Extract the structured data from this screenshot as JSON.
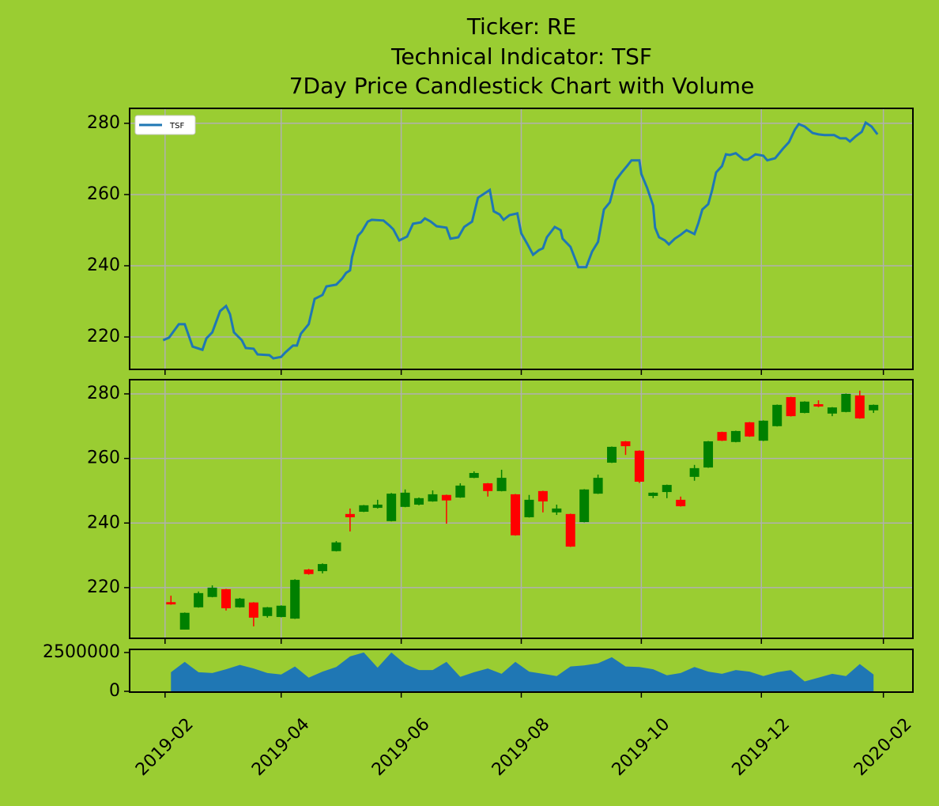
{
  "title": [
    "Ticker: RE",
    "Technical Indicator: TSF",
    "7Day Price Candlestick Chart with Volume"
  ],
  "chart_data": [
    {
      "type": "line",
      "grid": true,
      "legend": "upper left",
      "ylim": [
        210.9,
        284.2
      ],
      "yticks": [
        220,
        240,
        260,
        280
      ],
      "series": [
        {
          "name": "TSF",
          "color": "#1f77b4",
          "x": [
            "2019-01-31",
            "2019-02-03",
            "2019-02-08",
            "2019-02-11",
            "2019-02-15",
            "2019-02-20",
            "2019-02-22",
            "2019-02-25",
            "2019-03-01",
            "2019-03-04",
            "2019-03-06",
            "2019-03-08",
            "2019-03-12",
            "2019-03-14",
            "2019-03-18",
            "2019-03-20",
            "2019-03-26",
            "2019-03-28",
            "2019-04-01",
            "2019-04-03",
            "2019-04-07",
            "2019-04-09",
            "2019-04-11",
            "2019-04-15",
            "2019-04-18",
            "2019-04-22",
            "2019-04-24",
            "2019-04-29",
            "2019-05-02",
            "2019-05-04",
            "2019-05-06",
            "2019-05-07",
            "2019-05-10",
            "2019-05-12",
            "2019-05-15",
            "2019-05-17",
            "2019-05-23",
            "2019-05-26",
            "2019-05-28",
            "2019-05-31",
            "2019-06-04",
            "2019-06-07",
            "2019-06-11",
            "2019-06-13",
            "2019-06-16",
            "2019-06-19",
            "2019-06-24",
            "2019-06-26",
            "2019-06-30",
            "2019-07-03",
            "2019-07-07",
            "2019-07-10",
            "2019-07-16",
            "2019-07-18",
            "2019-07-21",
            "2019-07-23",
            "2019-07-26",
            "2019-07-30",
            "2019-08-01",
            "2019-08-04",
            "2019-08-07",
            "2019-08-10",
            "2019-08-12",
            "2019-08-14",
            "2019-08-18",
            "2019-08-21",
            "2019-08-22",
            "2019-08-26",
            "2019-08-30",
            "2019-09-03",
            "2019-09-06",
            "2019-09-09",
            "2019-09-12",
            "2019-09-15",
            "2019-09-18",
            "2019-09-21",
            "2019-09-24",
            "2019-09-26",
            "2019-09-30",
            "2019-10-01",
            "2019-10-04",
            "2019-10-07",
            "2019-10-08",
            "2019-10-10",
            "2019-10-13",
            "2019-10-15",
            "2019-10-18",
            "2019-10-21",
            "2019-10-24",
            "2019-10-28",
            "2019-10-30",
            "2019-11-01",
            "2019-11-04",
            "2019-11-06",
            "2019-11-08",
            "2019-11-11",
            "2019-11-13",
            "2019-11-15",
            "2019-11-18",
            "2019-11-22",
            "2019-11-24",
            "2019-11-28",
            "2019-12-02",
            "2019-12-04",
            "2019-12-08",
            "2019-12-12",
            "2019-12-15",
            "2019-12-18",
            "2019-12-20",
            "2019-12-23",
            "2019-12-27",
            "2019-12-30",
            "2020-01-02",
            "2020-01-07",
            "2020-01-10",
            "2020-01-13",
            "2020-01-15",
            "2020-01-18",
            "2020-01-21",
            "2020-01-23",
            "2020-01-26",
            "2020-01-29"
          ],
          "values": [
            219.1,
            219.8,
            223.6,
            223.6,
            217.3,
            216.4,
            219.6,
            221.3,
            227.3,
            228.7,
            226.4,
            221.3,
            219.1,
            216.9,
            216.7,
            215.1,
            214.9,
            214,
            214.4,
            215.6,
            217.6,
            217.6,
            220.9,
            223.6,
            230.7,
            231.8,
            234.2,
            234.7,
            236.4,
            238,
            238.7,
            242.4,
            248.4,
            249.6,
            252.4,
            252.9,
            252.7,
            251.3,
            250.2,
            247.1,
            248.2,
            251.8,
            252.2,
            253.3,
            252.4,
            251.1,
            250.7,
            247.6,
            248,
            250.9,
            252.4,
            259.1,
            261.3,
            255.3,
            254.4,
            252.9,
            254.2,
            254.7,
            249.1,
            246.2,
            243.1,
            244.4,
            244.9,
            248,
            250.9,
            250,
            247.6,
            245.3,
            239.6,
            239.6,
            244,
            246.7,
            255.8,
            257.8,
            264,
            266.2,
            268.2,
            269.6,
            269.6,
            265.8,
            261.8,
            256.9,
            250.7,
            248,
            247.1,
            246,
            247.6,
            248.7,
            250,
            248.9,
            252,
            255.8,
            257.3,
            261.3,
            266.2,
            268,
            271.3,
            271.1,
            271.6,
            269.8,
            269.8,
            271.3,
            270.9,
            269.6,
            270.2,
            272.9,
            274.7,
            278.2,
            279.8,
            279.1,
            277.3,
            276.9,
            276.7,
            276.7,
            275.8,
            275.8,
            274.9,
            276.4,
            277.6,
            280.2,
            279.1,
            276.9
          ]
        }
      ]
    },
    {
      "type": "candlestick",
      "grid": true,
      "up_color": "#008000",
      "down_color": "#ff0000",
      "ylim": [
        204.3,
        284.4
      ],
      "yticks": [
        220,
        240,
        260,
        280
      ],
      "x": [
        "2019-02-04",
        "2019-02-11",
        "2019-02-18",
        "2019-02-25",
        "2019-03-04",
        "2019-03-11",
        "2019-03-18",
        "2019-03-25",
        "2019-04-01",
        "2019-04-08",
        "2019-04-15",
        "2019-04-22",
        "2019-04-29",
        "2019-05-06",
        "2019-05-13",
        "2019-05-20",
        "2019-05-27",
        "2019-06-03",
        "2019-06-10",
        "2019-06-17",
        "2019-06-24",
        "2019-07-01",
        "2019-07-08",
        "2019-07-15",
        "2019-07-22",
        "2019-07-29",
        "2019-08-05",
        "2019-08-12",
        "2019-08-19",
        "2019-08-26",
        "2019-09-02",
        "2019-09-09",
        "2019-09-16",
        "2019-09-23",
        "2019-09-30",
        "2019-10-07",
        "2019-10-14",
        "2019-10-21",
        "2019-10-28",
        "2019-11-04",
        "2019-11-11",
        "2019-11-18",
        "2019-11-25",
        "2019-12-02",
        "2019-12-09",
        "2019-12-16",
        "2019-12-23",
        "2019-12-30",
        "2020-01-06",
        "2020-01-13",
        "2020-01-20",
        "2020-01-27"
      ],
      "open": [
        215.5,
        207,
        213.9,
        217.1,
        219.5,
        213.9,
        215.4,
        211.2,
        210.9,
        210.4,
        225.6,
        225.1,
        231.3,
        242.8,
        243.5,
        244.7,
        240.6,
        245,
        245.7,
        246.7,
        248.7,
        247.9,
        254,
        252.3,
        249.9,
        248.9,
        241.8,
        249.9,
        243.3,
        242.8,
        240.3,
        249.1,
        258.7,
        265.3,
        262.4,
        248.4,
        249.6,
        247.2,
        254.3,
        257.2,
        268.2,
        265.1,
        271.2,
        265.5,
        270,
        279,
        274.1,
        276.8,
        273.9,
        274.4,
        279.5,
        274.9
      ],
      "high": [
        217.5,
        212.3,
        218.8,
        220.7,
        219.6,
        216.8,
        215.5,
        214,
        214.5,
        222.6,
        225.8,
        227.5,
        234.4,
        244.5,
        245.6,
        247.2,
        249.3,
        250.4,
        247.9,
        250.1,
        248.8,
        252.3,
        256,
        252.4,
        256.5,
        249,
        248.7,
        250,
        245.7,
        242.9,
        250.5,
        255,
        263.7,
        265.4,
        262.5,
        249.5,
        251.9,
        248.2,
        258,
        265.4,
        268.3,
        268.6,
        271.3,
        271.8,
        276.7,
        279.1,
        277.7,
        278,
        275.9,
        280.1,
        281,
        276.7
      ],
      "low": [
        214.7,
        207,
        213.8,
        217,
        212.9,
        213.8,
        208,
        210.7,
        210.8,
        210.3,
        224,
        224.4,
        231.2,
        237.4,
        243.4,
        244.5,
        240.5,
        244.9,
        245.5,
        246.6,
        239.8,
        247.8,
        253.9,
        248.2,
        249.8,
        236.1,
        241.7,
        243.3,
        242.5,
        232.6,
        240.2,
        249,
        258.6,
        261.1,
        252.4,
        247.7,
        247.7,
        245.1,
        253.1,
        257.1,
        265.4,
        265,
        266.7,
        265.4,
        269.9,
        273,
        274,
        275.9,
        273.1,
        274.3,
        272.3,
        274.1
      ],
      "close": [
        214.8,
        212.2,
        218.3,
        220,
        213.6,
        216.6,
        210.7,
        213.9,
        214.4,
        222.4,
        224.2,
        227.3,
        234,
        241.8,
        245.5,
        245.7,
        249.1,
        249.4,
        247.7,
        248.9,
        247,
        251.6,
        255.5,
        249.9,
        254,
        236.2,
        247.2,
        246.7,
        244.5,
        232.7,
        250.4,
        254,
        263.6,
        263.8,
        252.8,
        249.4,
        251.8,
        245.2,
        257,
        265.3,
        265.5,
        268.5,
        266.8,
        271.7,
        276.6,
        273.1,
        277.6,
        276.1,
        275.8,
        280,
        272.4,
        276.6
      ]
    },
    {
      "type": "area",
      "color": "#1f77b4",
      "ylim": [
        -50000,
        2700000
      ],
      "yticks": [
        0,
        2500000
      ],
      "xlim": [
        "2019-01-14",
        "2020-02-16"
      ],
      "xticks": [
        "2019-02",
        "2019-04",
        "2019-06",
        "2019-08",
        "2019-10",
        "2019-12",
        "2020-02"
      ],
      "x": [
        "2019-02-04",
        "2019-02-11",
        "2019-02-18",
        "2019-02-25",
        "2019-03-04",
        "2019-03-11",
        "2019-03-18",
        "2019-03-25",
        "2019-04-01",
        "2019-04-08",
        "2019-04-15",
        "2019-04-22",
        "2019-04-29",
        "2019-05-06",
        "2019-05-13",
        "2019-05-20",
        "2019-05-27",
        "2019-06-03",
        "2019-06-10",
        "2019-06-17",
        "2019-06-24",
        "2019-07-01",
        "2019-07-08",
        "2019-07-15",
        "2019-07-22",
        "2019-07-29",
        "2019-08-05",
        "2019-08-12",
        "2019-08-19",
        "2019-08-26",
        "2019-09-02",
        "2019-09-09",
        "2019-09-16",
        "2019-09-23",
        "2019-09-30",
        "2019-10-07",
        "2019-10-14",
        "2019-10-21",
        "2019-10-28",
        "2019-11-04",
        "2019-11-11",
        "2019-11-18",
        "2019-11-25",
        "2019-12-02",
        "2019-12-09",
        "2019-12-16",
        "2019-12-23",
        "2019-12-30",
        "2020-01-06",
        "2020-01-13",
        "2020-01-20",
        "2020-01-27"
      ],
      "values": [
        1230000,
        1900000,
        1230000,
        1180000,
        1420000,
        1700000,
        1470000,
        1180000,
        1080000,
        1600000,
        880000,
        1270000,
        1570000,
        2250000,
        2500000,
        1520000,
        2500000,
        1760000,
        1370000,
        1370000,
        1900000,
        930000,
        1230000,
        1470000,
        1130000,
        1900000,
        1270000,
        1130000,
        980000,
        1600000,
        1670000,
        1800000,
        2200000,
        1600000,
        1570000,
        1420000,
        1030000,
        1180000,
        1570000,
        1270000,
        1130000,
        1370000,
        1270000,
        980000,
        1230000,
        1370000,
        640000,
        880000,
        1130000,
        980000,
        1760000,
        1080000
      ]
    }
  ]
}
